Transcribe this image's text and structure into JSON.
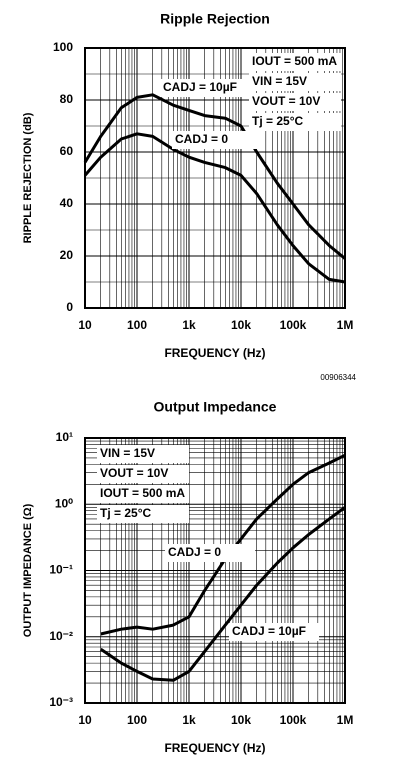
{
  "chart_data": [
    {
      "type": "line",
      "title": "Ripple Rejection",
      "x_label": "FREQUENCY (Hz)",
      "y_label": "RIPPLE REJECTION (dB)",
      "xlog": true,
      "ylog": false,
      "grid": true,
      "xlim": [
        10,
        1000000
      ],
      "xticks": [
        10,
        100,
        {
          "value": 1000,
          "label": "1k"
        },
        {
          "value": 10000,
          "label": "10k"
        },
        {
          "value": 100000,
          "label": "100k"
        },
        {
          "value": 1000000,
          "label": "1M"
        }
      ],
      "ylim": [
        0,
        100
      ],
      "yticks": [
        0,
        20,
        40,
        60,
        80,
        100
      ],
      "x": [
        10,
        20,
        50,
        100,
        200,
        500,
        1000,
        2000,
        5000,
        10000,
        20000,
        50000,
        100000,
        200000,
        500000,
        1000000
      ],
      "series": [
        {
          "name": "CADJ = 10µF",
          "color": "#000000",
          "values": [
            56,
            66,
            77,
            81,
            82,
            78,
            76,
            74,
            73,
            70,
            60,
            48,
            40,
            32,
            24,
            19
          ]
        },
        {
          "name": "CADJ = 0",
          "color": "#000000",
          "values": [
            51,
            58,
            65,
            67,
            66,
            61,
            58,
            56,
            54,
            51,
            44,
            32,
            24,
            17,
            11,
            10
          ]
        }
      ],
      "annotations": [
        "IOUT = 500 mA",
        "VIN = 15V",
        "VOUT = 10V",
        "Tj = 25°C"
      ],
      "figure_number": "00906344"
    },
    {
      "type": "line",
      "title": "Output Impedance",
      "x_label": "FREQUENCY (Hz)",
      "y_label": "OUTPUT IMPEDANCE (Ω)",
      "xlog": true,
      "ylog": true,
      "grid": true,
      "xlim": [
        10,
        1000000
      ],
      "xticks": [
        10,
        100,
        {
          "value": 1000,
          "label": "1k"
        },
        {
          "value": 10000,
          "label": "10k"
        },
        {
          "value": 100000,
          "label": "100k"
        },
        {
          "value": 1000000,
          "label": "1M"
        }
      ],
      "ylim": [
        0.001,
        10
      ],
      "yticks": [
        {
          "value": 0.001,
          "label": "10⁻³"
        },
        {
          "value": 0.01,
          "label": "10⁻²"
        },
        {
          "value": 0.1,
          "label": "10⁻¹"
        },
        {
          "value": 1,
          "label": "10⁰"
        },
        {
          "value": 10,
          "label": "10¹"
        }
      ],
      "x": [
        20,
        50,
        100,
        200,
        500,
        1000,
        2000,
        5000,
        10000,
        20000,
        50000,
        100000,
        200000,
        500000,
        1000000
      ],
      "series": [
        {
          "name": "CADJ = 0",
          "color": "#000000",
          "values": [
            0.011,
            0.013,
            0.014,
            0.013,
            0.015,
            0.02,
            0.05,
            0.15,
            0.3,
            0.6,
            1.2,
            2,
            3,
            4.2,
            5.5
          ]
        },
        {
          "name": "CADJ = 10µF",
          "color": "#000000",
          "values": [
            0.0065,
            0.004,
            0.003,
            0.0023,
            0.0022,
            0.003,
            0.006,
            0.015,
            0.03,
            0.06,
            0.13,
            0.22,
            0.35,
            0.6,
            0.9
          ]
        }
      ],
      "annotations": [
        "VIN = 15V",
        "VOUT = 10V",
        "IOUT = 500 mA",
        "Tj = 25°C"
      ]
    }
  ]
}
